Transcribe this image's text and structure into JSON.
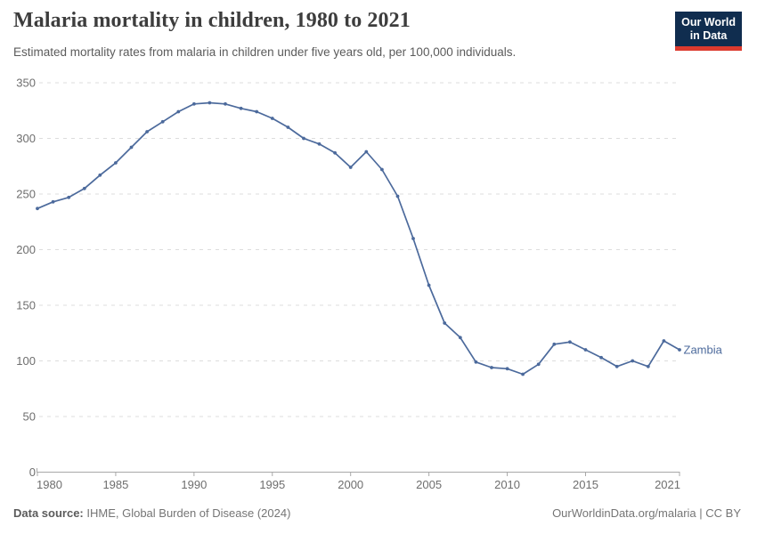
{
  "header": {
    "title": "Malaria mortality in children, 1980 to 2021",
    "subtitle": "Estimated mortality rates from malaria in children under five years old, per 100,000 individuals.",
    "logo_line1": "Our World",
    "logo_line2": "in Data",
    "logo_bg_color": "#102d4f",
    "logo_accent_color": "#dc3a2e"
  },
  "chart_data": {
    "type": "line",
    "title": "Malaria mortality in children, 1980 to 2021",
    "xlabel": "",
    "ylabel": "",
    "xlim": [
      1980,
      2021
    ],
    "ylim": [
      0,
      350
    ],
    "x_ticks": [
      1980,
      1985,
      1990,
      1995,
      2000,
      2005,
      2010,
      2015,
      2021
    ],
    "y_ticks": [
      0,
      50,
      100,
      150,
      200,
      250,
      300,
      350
    ],
    "grid": "horizontal-dashed",
    "legend_position": "end-of-line-label",
    "x": [
      1980,
      1981,
      1982,
      1983,
      1984,
      1985,
      1986,
      1987,
      1988,
      1989,
      1990,
      1991,
      1992,
      1993,
      1994,
      1995,
      1996,
      1997,
      1998,
      1999,
      2000,
      2001,
      2002,
      2003,
      2004,
      2005,
      2006,
      2007,
      2008,
      2009,
      2010,
      2011,
      2012,
      2013,
      2014,
      2015,
      2016,
      2017,
      2018,
      2019,
      2020,
      2021
    ],
    "series": [
      {
        "name": "Zambia",
        "color": "#4C6A9C",
        "values": [
          237,
          243,
          247,
          255,
          267,
          278,
          292,
          306,
          315,
          324,
          331,
          332,
          331,
          327,
          324,
          318,
          310,
          300,
          295,
          287,
          274,
          288,
          272,
          248,
          210,
          168,
          134,
          121,
          99,
          94,
          93,
          88,
          97,
          115,
          117,
          110,
          103,
          95,
          100,
          95,
          118,
          110
        ]
      }
    ],
    "colors": {
      "gridline": "#dddddd",
      "axis": "#a8a8a8",
      "tick_label": "#6e6e6e"
    }
  },
  "footer": {
    "source_label": "Data source:",
    "source_text": " IHME, Global Burden of Disease (2024)",
    "credit": "OurWorldinData.org/malaria | CC BY"
  }
}
